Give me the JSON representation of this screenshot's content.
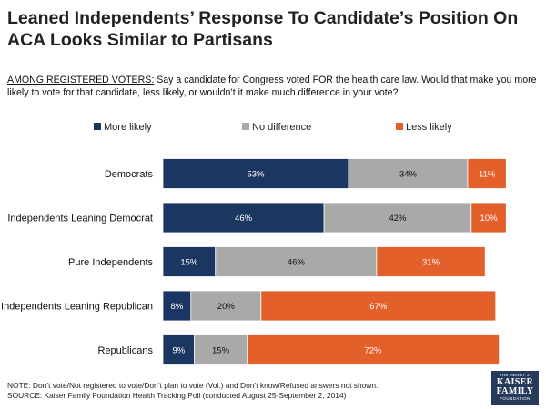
{
  "header": {
    "title": "Leaned Independents’ Response To Candidate’s Position On ACA Looks Similar to Partisans"
  },
  "question": {
    "lead": "AMONG REGISTERED VOTERS:",
    "text": " Say a candidate for Congress voted FOR the health care law.  Would that make you more likely to vote for that candidate, less likely, or wouldn’t it make much difference in your vote?"
  },
  "chart_data": {
    "type": "bar",
    "orientation": "horizontal",
    "stacked": true,
    "unit": "%",
    "categories": [
      "Democrats",
      "Independents Leaning Democrat",
      "Pure Independents",
      "Independents Leaning Republican",
      "Republicans"
    ],
    "series": [
      {
        "name": "More likely",
        "color": "#1b3660",
        "values": [
          53,
          46,
          15,
          8,
          9
        ]
      },
      {
        "name": "No difference",
        "color": "#a9a9a9",
        "values": [
          34,
          42,
          46,
          20,
          15
        ]
      },
      {
        "name": "Less likely",
        "color": "#e4602a",
        "values": [
          11,
          10,
          31,
          67,
          72
        ]
      }
    ],
    "legend_position": "top",
    "xlim": [
      0,
      100
    ]
  },
  "footer": {
    "note": "NOTE: Don’t vote/Not registered to vote/Don’t plan to vote (Vol.) and Don’t know/Refused answers not shown.",
    "source": "SOURCE: Kaiser Family Foundation Health Tracking Poll (conducted August 25-September 2, 2014)"
  },
  "logo": {
    "line1": "THE HENRY J.",
    "line2": "KAISER",
    "line3": "FAMILY",
    "line4": "FOUNDATION"
  }
}
